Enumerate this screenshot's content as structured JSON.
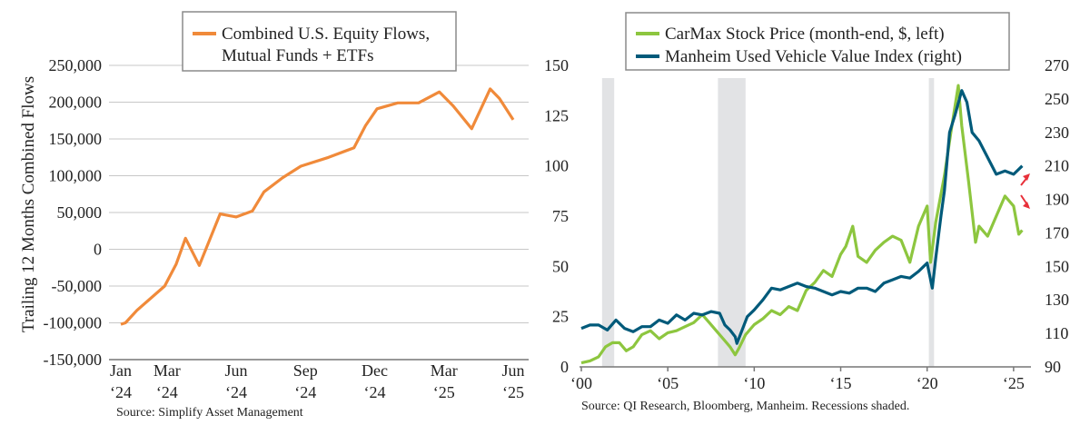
{
  "chart_data": [
    {
      "type": "line",
      "title": "",
      "legend": "Combined U.S. Equity Flows, Mutual Funds + ETFs",
      "legend_lines": [
        "Combined U.S. Equity Flows,",
        "Mutual Funds + ETFs"
      ],
      "legend_position": "top-center",
      "xlabel": "",
      "ylabel": "Trailing 12 Months Combined Flows",
      "ylim": [
        -150000,
        250000
      ],
      "yticks": [
        250000,
        200000,
        150000,
        100000,
        50000,
        0,
        -50000,
        -100000,
        -150000
      ],
      "ytick_labels": [
        "250,000",
        "200,000",
        "150,000",
        "100,000",
        "50,000",
        "0",
        "-50,000",
        "-100,000",
        "-150,000"
      ],
      "grid": true,
      "color": "#F08A3A",
      "x_tick_labels": [
        {
          "m": 0,
          "l1": "Jan",
          "l2": "‘24"
        },
        {
          "m": 2,
          "l1": "Mar",
          "l2": "‘24"
        },
        {
          "m": 5,
          "l1": "Jun",
          "l2": "‘24"
        },
        {
          "m": 8,
          "l1": "Sep",
          "l2": "‘24"
        },
        {
          "m": 11,
          "l1": "Dec",
          "l2": "‘24"
        },
        {
          "m": 14,
          "l1": "Mar",
          "l2": "‘25"
        },
        {
          "m": 17,
          "l1": "Jun",
          "l2": "‘25"
        }
      ],
      "series": [
        {
          "name": "Combined U.S. Equity Flows, Mutual Funds + ETFs",
          "x": [
            "Jan 2024",
            "Jan 2024",
            "Feb 2024",
            "Mar 2024",
            "Apr 2024",
            "Apr 2024",
            "May 2024",
            "Jun 2024",
            "Jun 2024",
            "Jul 2024",
            "Aug 2024",
            "Aug 2024",
            "Sep 2024",
            "Oct 2024",
            "Nov 2024",
            "Dec 2024",
            "Dec 2024",
            "Jan 2025",
            "Feb 2025",
            "Mar 2025",
            "Mar 2025",
            "Apr 2025",
            "May 2025",
            "May 2025",
            "Jun 2025"
          ],
          "m": [
            0,
            0.2,
            0.7,
            1.9,
            2.4,
            2.8,
            3.4,
            4.3,
            5.0,
            5.7,
            6.2,
            7.0,
            7.8,
            9.0,
            10.1,
            10.6,
            11.1,
            12.0,
            12.9,
            13.8,
            14.4,
            15.2,
            16.0,
            16.4,
            17.0
          ],
          "values": [
            -102000,
            -100000,
            -83000,
            -50000,
            -20000,
            15000,
            -22000,
            48000,
            44000,
            52000,
            78000,
            97000,
            113000,
            125000,
            138000,
            168000,
            191000,
            199000,
            199000,
            214000,
            195000,
            164000,
            218000,
            205000,
            176000
          ]
        }
      ],
      "source": "Source: Simplify Asset Management"
    },
    {
      "type": "line",
      "title": "",
      "xlabel": "",
      "ylabel_left": "",
      "ylabel_right": "",
      "xlim": [
        2000,
        2025.9
      ],
      "ylim_left": [
        0,
        150
      ],
      "ylim_right": [
        90,
        270
      ],
      "yticks_left": [
        0,
        25,
        50,
        75,
        100,
        125,
        150
      ],
      "yticks_right": [
        90,
        110,
        130,
        150,
        170,
        190,
        210,
        230,
        250,
        270
      ],
      "xticks": [
        2000,
        2005,
        2010,
        2015,
        2020,
        2025
      ],
      "xtick_labels": [
        "‘00",
        "‘05",
        "‘10",
        "‘15",
        "‘20",
        "‘25"
      ],
      "grid": false,
      "legend_position": "top-center",
      "recessions": [
        [
          2001.2,
          2001.9
        ],
        [
          2007.9,
          2009.5
        ],
        [
          2020.1,
          2020.4
        ]
      ],
      "recession_color": "#E2E3E5",
      "series": [
        {
          "name": "CarMax Stock Price (month-end, $, left)",
          "axis": "left",
          "color": "#8DC63F",
          "x": [
            2000.0,
            2000.5,
            2001.0,
            2001.4,
            2001.8,
            2002.2,
            2002.6,
            2003.0,
            2003.5,
            2004.0,
            2004.5,
            2005.0,
            2005.5,
            2006.0,
            2006.5,
            2007.0,
            2007.4,
            2007.8,
            2008.2,
            2008.6,
            2008.9,
            2009.1,
            2009.5,
            2010.0,
            2010.5,
            2011.0,
            2011.5,
            2012.0,
            2012.5,
            2013.0,
            2013.5,
            2014.0,
            2014.5,
            2015.0,
            2015.3,
            2015.7,
            2016.0,
            2016.5,
            2017.0,
            2017.5,
            2018.0,
            2018.5,
            2019.0,
            2019.5,
            2020.0,
            2020.2,
            2020.5,
            2021.0,
            2021.4,
            2021.8,
            2022.0,
            2022.4,
            2022.8,
            2023.0,
            2023.5,
            2024.0,
            2024.5,
            2025.0,
            2025.3,
            2025.5
          ],
          "values": [
            2,
            3,
            5,
            10,
            12,
            12,
            8,
            10,
            16,
            18,
            14,
            17,
            18,
            20,
            22,
            26,
            22,
            18,
            14,
            10,
            6,
            9,
            16,
            21,
            24,
            28,
            26,
            30,
            28,
            38,
            42,
            48,
            45,
            56,
            60,
            70,
            55,
            52,
            58,
            62,
            65,
            63,
            52,
            70,
            80,
            52,
            72,
            95,
            118,
            140,
            120,
            92,
            62,
            70,
            65,
            75,
            85,
            80,
            66,
            68
          ]
        },
        {
          "name": "Manheim Used Vehicle Value Index (right)",
          "axis": "right",
          "color": "#005A7A",
          "x": [
            2000.0,
            2000.5,
            2001.0,
            2001.5,
            2002.0,
            2002.5,
            2003.0,
            2003.5,
            2004.0,
            2004.5,
            2005.0,
            2005.5,
            2006.0,
            2006.5,
            2007.0,
            2007.5,
            2008.0,
            2008.3,
            2008.6,
            2008.9,
            2009.0,
            2009.3,
            2009.6,
            2010.0,
            2010.5,
            2011.0,
            2011.5,
            2012.0,
            2012.5,
            2013.0,
            2013.5,
            2014.0,
            2014.5,
            2015.0,
            2015.5,
            2016.0,
            2016.5,
            2017.0,
            2017.5,
            2018.0,
            2018.5,
            2019.0,
            2019.5,
            2020.0,
            2020.3,
            2020.5,
            2020.8,
            2021.0,
            2021.3,
            2021.6,
            2022.0,
            2022.3,
            2022.6,
            2023.0,
            2023.5,
            2024.0,
            2024.5,
            2025.0,
            2025.3,
            2025.5
          ],
          "values": [
            113,
            115,
            115,
            112,
            118,
            113,
            111,
            114,
            114,
            118,
            116,
            121,
            118,
            122,
            121,
            123,
            122,
            115,
            112,
            108,
            104,
            112,
            120,
            124,
            130,
            137,
            136,
            138,
            140,
            138,
            137,
            135,
            133,
            135,
            134,
            137,
            137,
            135,
            140,
            142,
            144,
            143,
            147,
            152,
            137,
            155,
            180,
            195,
            230,
            240,
            255,
            248,
            230,
            225,
            215,
            205,
            207,
            205,
            208,
            210
          ]
        }
      ],
      "source": "Source: QI Research, Bloomberg, Manheim. Recessions shaded."
    }
  ]
}
